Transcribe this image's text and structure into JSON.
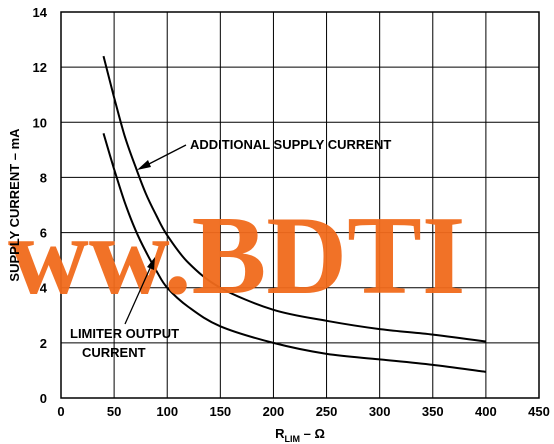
{
  "chart_data": {
    "type": "line",
    "title": "",
    "xlabel": "R",
    "xlabel_subscript": "LIM",
    "xlabel_suffix": " – Ω",
    "ylabel": "SUPPLY CURRENT – mA",
    "xlim": [
      0,
      450
    ],
    "ylim": [
      0,
      14
    ],
    "xticks": [
      0,
      50,
      100,
      150,
      200,
      250,
      300,
      350,
      400,
      450
    ],
    "yticks": [
      0,
      2,
      4,
      6,
      8,
      10,
      12,
      14
    ],
    "grid": true,
    "series": [
      {
        "name": "ADDITIONAL SUPPLY CURRENT",
        "x": [
          40,
          50,
          60,
          70,
          80,
          90,
          100,
          120,
          150,
          200,
          250,
          300,
          350,
          400
        ],
        "y": [
          12.4,
          10.9,
          9.5,
          8.4,
          7.4,
          6.6,
          5.9,
          4.9,
          4.0,
          3.2,
          2.8,
          2.5,
          2.3,
          2.05
        ]
      },
      {
        "name": "LIMITER OUTPUT CURRENT",
        "x": [
          40,
          50,
          60,
          70,
          80,
          90,
          100,
          120,
          150,
          200,
          250,
          300,
          350,
          400
        ],
        "y": [
          9.6,
          8.3,
          7.1,
          6.1,
          5.3,
          4.6,
          4.0,
          3.3,
          2.6,
          2.0,
          1.6,
          1.4,
          1.2,
          0.95
        ]
      }
    ],
    "annotations": [
      {
        "text": "ADDITIONAL SUPPLY CURRENT",
        "points_to": "ADDITIONAL SUPPLY CURRENT"
      },
      {
        "text": "LIMITER OUTPUT CURRENT",
        "points_to": "LIMITER OUTPUT CURRENT"
      }
    ]
  },
  "watermark": "ww.BDTI",
  "colors": {
    "watermark": "#f16b1c",
    "ink": "#000000"
  }
}
